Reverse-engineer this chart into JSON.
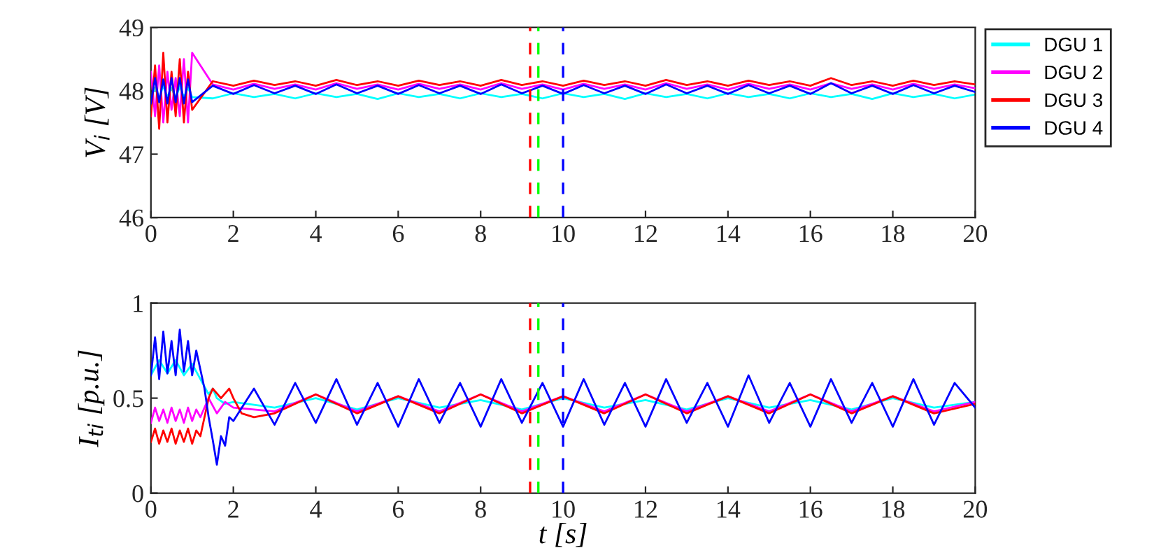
{
  "chart_data": [
    {
      "type": "line",
      "ylabel": "V$_{i}$ [V]",
      "xlim": [
        0,
        20
      ],
      "ylim": [
        46,
        49
      ],
      "xticks": [
        0,
        2,
        4,
        6,
        8,
        10,
        12,
        14,
        16,
        18,
        20
      ],
      "yticks": [
        46,
        47,
        48,
        49
      ],
      "grid": false,
      "legend": "right",
      "line_style": "solid",
      "series": [
        {
          "name": "DGU 1",
          "color": "#00ffff",
          "x": [
            0,
            0.1,
            0.2,
            0.3,
            0.4,
            0.5,
            0.6,
            0.7,
            0.8,
            0.9,
            1.0,
            1.5,
            2,
            2.5,
            3,
            3.5,
            4,
            4.5,
            5,
            5.5,
            6,
            6.5,
            7,
            7.5,
            8,
            8.5,
            9,
            9.5,
            10,
            10.5,
            11,
            11.5,
            12,
            12.5,
            13,
            13.5,
            14,
            14.5,
            15,
            15.5,
            16,
            16.5,
            17,
            17.5,
            18,
            18.5,
            19,
            19.5,
            20
          ],
          "values": [
            47.9,
            48.05,
            47.88,
            48.08,
            47.9,
            48.05,
            47.88,
            48.07,
            47.9,
            48.05,
            47.9,
            47.88,
            47.96,
            47.9,
            47.95,
            47.88,
            47.96,
            47.9,
            47.95,
            47.87,
            47.96,
            47.9,
            47.95,
            47.88,
            47.96,
            47.9,
            47.95,
            47.88,
            47.96,
            47.9,
            47.95,
            47.87,
            47.96,
            47.9,
            47.95,
            47.88,
            47.96,
            47.9,
            47.95,
            47.88,
            47.96,
            47.9,
            47.95,
            47.87,
            47.96,
            47.9,
            47.95,
            47.88,
            47.94
          ]
        },
        {
          "name": "DGU 2",
          "color": "#ff00ff",
          "x": [
            0,
            0.1,
            0.2,
            0.3,
            0.4,
            0.5,
            0.6,
            0.7,
            0.8,
            0.9,
            1.0,
            1.5,
            2,
            2.5,
            3,
            3.5,
            4,
            4.5,
            5,
            5.5,
            6,
            6.5,
            7,
            7.5,
            8,
            8.5,
            9,
            9.5,
            10,
            10.5,
            11,
            11.5,
            12,
            12.5,
            13,
            13.5,
            14,
            14.5,
            15,
            15.5,
            16,
            16.5,
            17,
            17.5,
            18,
            18.5,
            19,
            19.5,
            20
          ],
          "values": [
            48.3,
            47.6,
            48.4,
            47.5,
            48.3,
            47.7,
            48.2,
            47.6,
            48.5,
            47.5,
            48.6,
            48.1,
            48.02,
            48.11,
            48.03,
            48.1,
            48.02,
            48.12,
            48.03,
            48.1,
            48.02,
            48.11,
            48.03,
            48.1,
            48.02,
            48.12,
            48.03,
            48.1,
            48.02,
            48.11,
            48.03,
            48.1,
            48.02,
            48.12,
            48.03,
            48.1,
            48.02,
            48.11,
            48.03,
            48.1,
            48.02,
            48.12,
            48.03,
            48.1,
            48.02,
            48.11,
            48.03,
            48.1,
            48.04
          ]
        },
        {
          "name": "DGU 3",
          "color": "#ff0000",
          "x": [
            0,
            0.1,
            0.2,
            0.3,
            0.4,
            0.5,
            0.6,
            0.7,
            0.8,
            0.9,
            1.0,
            1.5,
            2,
            2.5,
            3,
            3.5,
            4,
            4.5,
            5,
            5.5,
            6,
            6.5,
            7,
            7.5,
            8,
            8.5,
            9,
            9.5,
            10,
            10.5,
            11,
            11.5,
            12,
            12.5,
            13,
            13.5,
            14,
            14.5,
            15,
            15.5,
            16,
            16.5,
            17,
            17.5,
            18,
            18.5,
            19,
            19.5,
            20
          ],
          "values": [
            47.6,
            48.4,
            47.4,
            48.6,
            47.5,
            48.3,
            47.6,
            48.5,
            47.5,
            48.3,
            47.7,
            48.15,
            48.08,
            48.16,
            48.09,
            48.15,
            48.08,
            48.17,
            48.09,
            48.15,
            48.08,
            48.16,
            48.09,
            48.15,
            48.08,
            48.17,
            48.09,
            48.15,
            48.08,
            48.16,
            48.09,
            48.15,
            48.08,
            48.17,
            48.09,
            48.15,
            48.08,
            48.16,
            48.09,
            48.15,
            48.08,
            48.2,
            48.09,
            48.15,
            48.08,
            48.16,
            48.09,
            48.15,
            48.1
          ]
        },
        {
          "name": "DGU 4",
          "color": "#0000ff",
          "x": [
            0,
            0.1,
            0.2,
            0.3,
            0.4,
            0.5,
            0.6,
            0.7,
            0.8,
            0.9,
            1.0,
            1.5,
            2,
            2.5,
            3,
            3.5,
            4,
            4.5,
            5,
            5.5,
            6,
            6.5,
            7,
            7.5,
            8,
            8.5,
            9,
            9.5,
            10,
            10.5,
            11,
            11.5,
            12,
            12.5,
            13,
            13.5,
            14,
            14.5,
            15,
            15.5,
            16,
            16.5,
            17,
            17.5,
            18,
            18.5,
            19,
            19.5,
            20
          ],
          "values": [
            47.8,
            48.2,
            47.82,
            48.18,
            47.8,
            48.2,
            47.82,
            48.2,
            47.8,
            48.18,
            47.82,
            48.08,
            47.95,
            48.09,
            47.96,
            48.08,
            47.95,
            48.1,
            47.96,
            48.08,
            47.95,
            48.09,
            47.96,
            48.08,
            47.95,
            48.1,
            47.96,
            48.08,
            47.95,
            48.09,
            47.96,
            48.08,
            47.95,
            48.1,
            47.96,
            48.08,
            47.95,
            48.09,
            47.96,
            48.08,
            47.95,
            48.12,
            47.96,
            48.08,
            47.95,
            48.09,
            47.96,
            48.08,
            47.98
          ]
        }
      ],
      "ref_lines": [
        {
          "axis": "x",
          "value": 9.2,
          "color": "#ff0000",
          "line_style": "dashed"
        },
        {
          "axis": "x",
          "value": 9.4,
          "color": "#00ff00",
          "line_style": "dashed"
        },
        {
          "axis": "x",
          "value": 10,
          "color": "#0000ff",
          "line_style": "dashed"
        }
      ]
    },
    {
      "type": "line",
      "xlabel": "t [s]",
      "ylabel": "I$_{ti}$ [p.u.]",
      "xlim": [
        0,
        20
      ],
      "ylim": [
        0,
        1
      ],
      "xticks": [
        0,
        2,
        4,
        6,
        8,
        10,
        12,
        14,
        16,
        18,
        20
      ],
      "yticks": [
        0,
        0.5,
        1
      ],
      "grid": false,
      "line_style": "solid",
      "series": [
        {
          "color": "#00ffff",
          "x": [
            0,
            0.2,
            0.4,
            0.6,
            0.8,
            1.0,
            1.2,
            1.3,
            1.4,
            1.5,
            1.6,
            1.8,
            2,
            3,
            4,
            5,
            6,
            7,
            8,
            9,
            10,
            11,
            12,
            13,
            14,
            15,
            16,
            17,
            18,
            19,
            20
          ],
          "values": [
            0.62,
            0.7,
            0.63,
            0.7,
            0.62,
            0.68,
            0.6,
            0.56,
            0.52,
            0.55,
            0.5,
            0.47,
            0.48,
            0.45,
            0.5,
            0.44,
            0.5,
            0.45,
            0.49,
            0.44,
            0.5,
            0.45,
            0.49,
            0.44,
            0.5,
            0.45,
            0.49,
            0.44,
            0.5,
            0.45,
            0.48
          ]
        },
        {
          "color": "#ff00ff",
          "x": [
            0,
            0.1,
            0.2,
            0.3,
            0.4,
            0.5,
            0.6,
            0.7,
            0.8,
            0.9,
            1.0,
            1.1,
            1.2,
            1.4,
            1.6,
            1.8,
            2,
            3,
            4,
            5,
            6,
            7,
            8,
            9,
            10,
            11,
            12,
            13,
            14,
            15,
            16,
            17,
            18,
            19,
            20
          ],
          "values": [
            0.37,
            0.45,
            0.38,
            0.44,
            0.37,
            0.45,
            0.38,
            0.44,
            0.37,
            0.45,
            0.38,
            0.44,
            0.4,
            0.5,
            0.42,
            0.48,
            0.45,
            0.43,
            0.52,
            0.43,
            0.51,
            0.43,
            0.52,
            0.43,
            0.51,
            0.43,
            0.52,
            0.43,
            0.51,
            0.43,
            0.52,
            0.43,
            0.51,
            0.43,
            0.48
          ]
        },
        {
          "color": "#ff0000",
          "x": [
            0,
            0.1,
            0.2,
            0.3,
            0.4,
            0.5,
            0.6,
            0.7,
            0.8,
            0.9,
            1.0,
            1.1,
            1.2,
            1.3,
            1.4,
            1.5,
            1.7,
            1.9,
            2.0,
            2.2,
            2.5,
            3,
            4,
            5,
            6,
            7,
            8,
            9,
            10,
            11,
            12,
            13,
            14,
            15,
            16,
            17,
            18,
            19,
            20
          ],
          "values": [
            0.27,
            0.34,
            0.26,
            0.33,
            0.27,
            0.34,
            0.26,
            0.33,
            0.27,
            0.34,
            0.26,
            0.33,
            0.3,
            0.4,
            0.5,
            0.55,
            0.5,
            0.55,
            0.5,
            0.42,
            0.4,
            0.42,
            0.52,
            0.42,
            0.51,
            0.42,
            0.52,
            0.42,
            0.51,
            0.42,
            0.52,
            0.42,
            0.51,
            0.42,
            0.52,
            0.42,
            0.51,
            0.42,
            0.47
          ]
        },
        {
          "color": "#0000ff",
          "x": [
            0,
            0.1,
            0.2,
            0.3,
            0.4,
            0.5,
            0.6,
            0.7,
            0.8,
            0.9,
            1.0,
            1.1,
            1.2,
            1.3,
            1.4,
            1.5,
            1.6,
            1.7,
            1.8,
            1.9,
            2.0,
            2.5,
            3,
            3.5,
            4,
            4.5,
            5,
            5.5,
            6,
            6.5,
            7,
            7.5,
            8,
            8.5,
            9,
            9.5,
            10,
            10.5,
            11,
            11.5,
            12,
            12.5,
            13,
            13.5,
            14,
            14.5,
            15,
            15.5,
            16,
            16.5,
            17,
            17.5,
            18,
            18.5,
            19,
            19.5,
            20
          ],
          "values": [
            0.62,
            0.82,
            0.6,
            0.85,
            0.63,
            0.8,
            0.62,
            0.86,
            0.64,
            0.8,
            0.62,
            0.75,
            0.65,
            0.55,
            0.4,
            0.28,
            0.15,
            0.3,
            0.25,
            0.4,
            0.38,
            0.55,
            0.36,
            0.58,
            0.37,
            0.6,
            0.36,
            0.58,
            0.35,
            0.6,
            0.37,
            0.58,
            0.35,
            0.6,
            0.37,
            0.58,
            0.35,
            0.6,
            0.36,
            0.58,
            0.35,
            0.6,
            0.37,
            0.58,
            0.35,
            0.62,
            0.37,
            0.58,
            0.35,
            0.6,
            0.37,
            0.58,
            0.35,
            0.6,
            0.36,
            0.58,
            0.45
          ]
        }
      ],
      "ref_lines": [
        {
          "axis": "x",
          "value": 9.2,
          "color": "#ff0000",
          "line_style": "dashed"
        },
        {
          "axis": "x",
          "value": 9.4,
          "color": "#00ff00",
          "line_style": "dashed"
        },
        {
          "axis": "x",
          "value": 10,
          "color": "#0000ff",
          "line_style": "dashed"
        }
      ]
    }
  ]
}
